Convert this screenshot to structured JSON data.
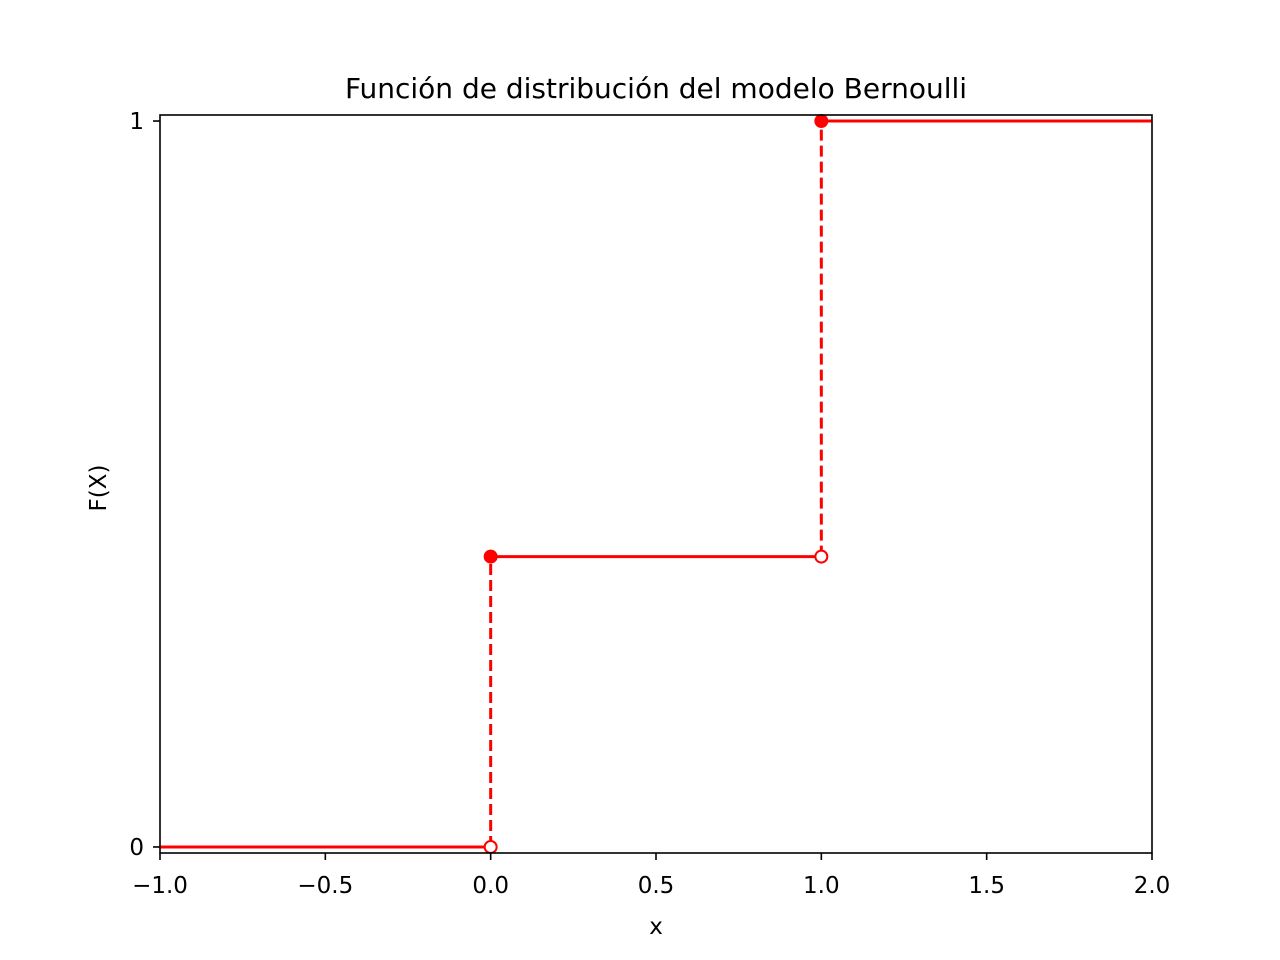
{
  "chart_data": {
    "type": "line",
    "title": "Función de distribución del modelo Bernoulli",
    "xlabel": "x",
    "ylabel": "F(X)",
    "xlim": [
      -1.0,
      2.0
    ],
    "ylim": [
      -0.0083,
      1.0083
    ],
    "xticks": [
      -1.0,
      -0.5,
      0.0,
      0.5,
      1.0,
      1.5,
      2.0
    ],
    "xtick_labels": [
      "−1.0",
      "−0.5",
      "0.0",
      "0.5",
      "1.0",
      "1.5",
      "2.0"
    ],
    "yticks": [
      0,
      1
    ],
    "ytick_labels": [
      "0",
      "1"
    ],
    "grid": false,
    "legend": "none",
    "color": "#ff0000",
    "series": [
      {
        "style": "solid",
        "segments": [
          {
            "x": [
              -1.0,
              0.0
            ],
            "y": [
              0,
              0
            ]
          },
          {
            "x": [
              0.0,
              1.0
            ],
            "y": [
              0.4,
              0.4
            ]
          },
          {
            "x": [
              1.0,
              2.0
            ],
            "y": [
              1,
              1
            ]
          }
        ]
      },
      {
        "style": "dashed",
        "segments": [
          {
            "x": [
              0.0,
              0.0
            ],
            "y": [
              0,
              0.4
            ]
          },
          {
            "x": [
              1.0,
              1.0
            ],
            "y": [
              0.4,
              1
            ]
          }
        ]
      }
    ],
    "points": [
      {
        "x": 0.0,
        "y": 0,
        "filled": false
      },
      {
        "x": 0.0,
        "y": 0.4,
        "filled": true
      },
      {
        "x": 1.0,
        "y": 0.4,
        "filled": false
      },
      {
        "x": 1.0,
        "y": 1,
        "filled": true
      }
    ]
  }
}
